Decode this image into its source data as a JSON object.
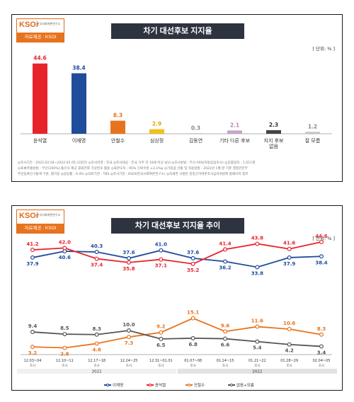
{
  "logo": {
    "mark": "KSOi",
    "subtitle": "한국사회여론연구소",
    "source": "자료제공 : KSOI"
  },
  "unit": "[ 단위: % ]",
  "chart_data": [
    {
      "type": "bar",
      "title": "차기 대선후보 지지율",
      "categories": [
        "윤석열",
        "이재명",
        "안철수",
        "심상정",
        "김동연",
        "기타 다른 후보",
        "지지 후보\n없음",
        "잘 모름"
      ],
      "values": [
        44.6,
        38.4,
        8.3,
        2.9,
        0.3,
        2.1,
        2.3,
        1.2
      ],
      "value_labels": [
        "44.6",
        "38.4",
        "8.3",
        "2.9",
        "0.3",
        "2.1",
        "2.3",
        "1.2"
      ],
      "colors": [
        "#e8242b",
        "#1f4c9b",
        "#e8731e",
        "#f0c21c",
        "#b5b5b5",
        "#c9a6c8",
        "#444444",
        "#c4c4c4"
      ],
      "label_colors": [
        "#e8242b",
        "#1f4c9b",
        "#e8731e",
        "#e0a800",
        "#888888",
        "#b58ab4",
        "#333333",
        "#888888"
      ],
      "ylim": [
        0,
        50
      ]
    },
    {
      "type": "line",
      "title": "차기 대선후보 지지율 추이",
      "x": [
        "12.03~04",
        "12.10~11",
        "12.17~18",
        "12.24~25",
        "12.31~01.01",
        "01.07~08",
        "01.14~15",
        "01.21~22",
        "01.28~29",
        "02.04~05"
      ],
      "x_sub": "조사",
      "years": [
        {
          "label": "2021",
          "from": 0,
          "to": 4
        },
        {
          "label": "2022",
          "from": 5,
          "to": 9
        }
      ],
      "series": [
        {
          "name": "이재명",
          "color": "#1f4c9b",
          "values": [
            37.9,
            40.6,
            40.3,
            37.6,
            41.0,
            37.6,
            36.2,
            33.8,
            37.9,
            38.4
          ]
        },
        {
          "name": "윤석열",
          "color": "#e8242b",
          "values": [
            41.2,
            42.0,
            37.4,
            35.8,
            37.1,
            35.2,
            41.4,
            43.8,
            41.6,
            44.6
          ]
        },
        {
          "name": "안철수",
          "color": "#e8731e",
          "values": [
            3.2,
            2.8,
            4.6,
            7.3,
            9.2,
            15.1,
            9.6,
            11.6,
            10.6,
            8.3
          ]
        },
        {
          "name": "없음+모름",
          "color": "#555555",
          "values": [
            9.4,
            8.5,
            8.3,
            10.0,
            6.5,
            6.8,
            6.6,
            5.4,
            4.2,
            3.4
          ]
        }
      ]
    }
  ],
  "footnote1": {
    "line1": "◎조사기간 : 2022.02.04~2022.02.05 (2일간)   ◎조사지역 : 전국   ◎조사대상 : 전국 거주 만 18세 이상 남녀   ◎조사방법 : 무선 ARS(자동응답조사)   ◎응答답자 : 1,011명",
    "line2": "◎표本추출방법 : 무선(100%)-통신사 제공 휴대전화 가상번호 활용   ◎표본오차 : 95% 신뢰수준 ±3.1%p   ◎가중값 산출 및 적용방법 : 2022년 1월 말 기준 행정안전부",
    "line3": "주민등록인구통계 기준, 셀가중   ◎응답률 : 9.4%   ◎의뢰기관 : TBS   ◎조사기관 : KSOI(한국사회여론연구소)   ◎자세한 사항은 중앙선거여론조사심의위원회 홈페이지 참조"
  }
}
